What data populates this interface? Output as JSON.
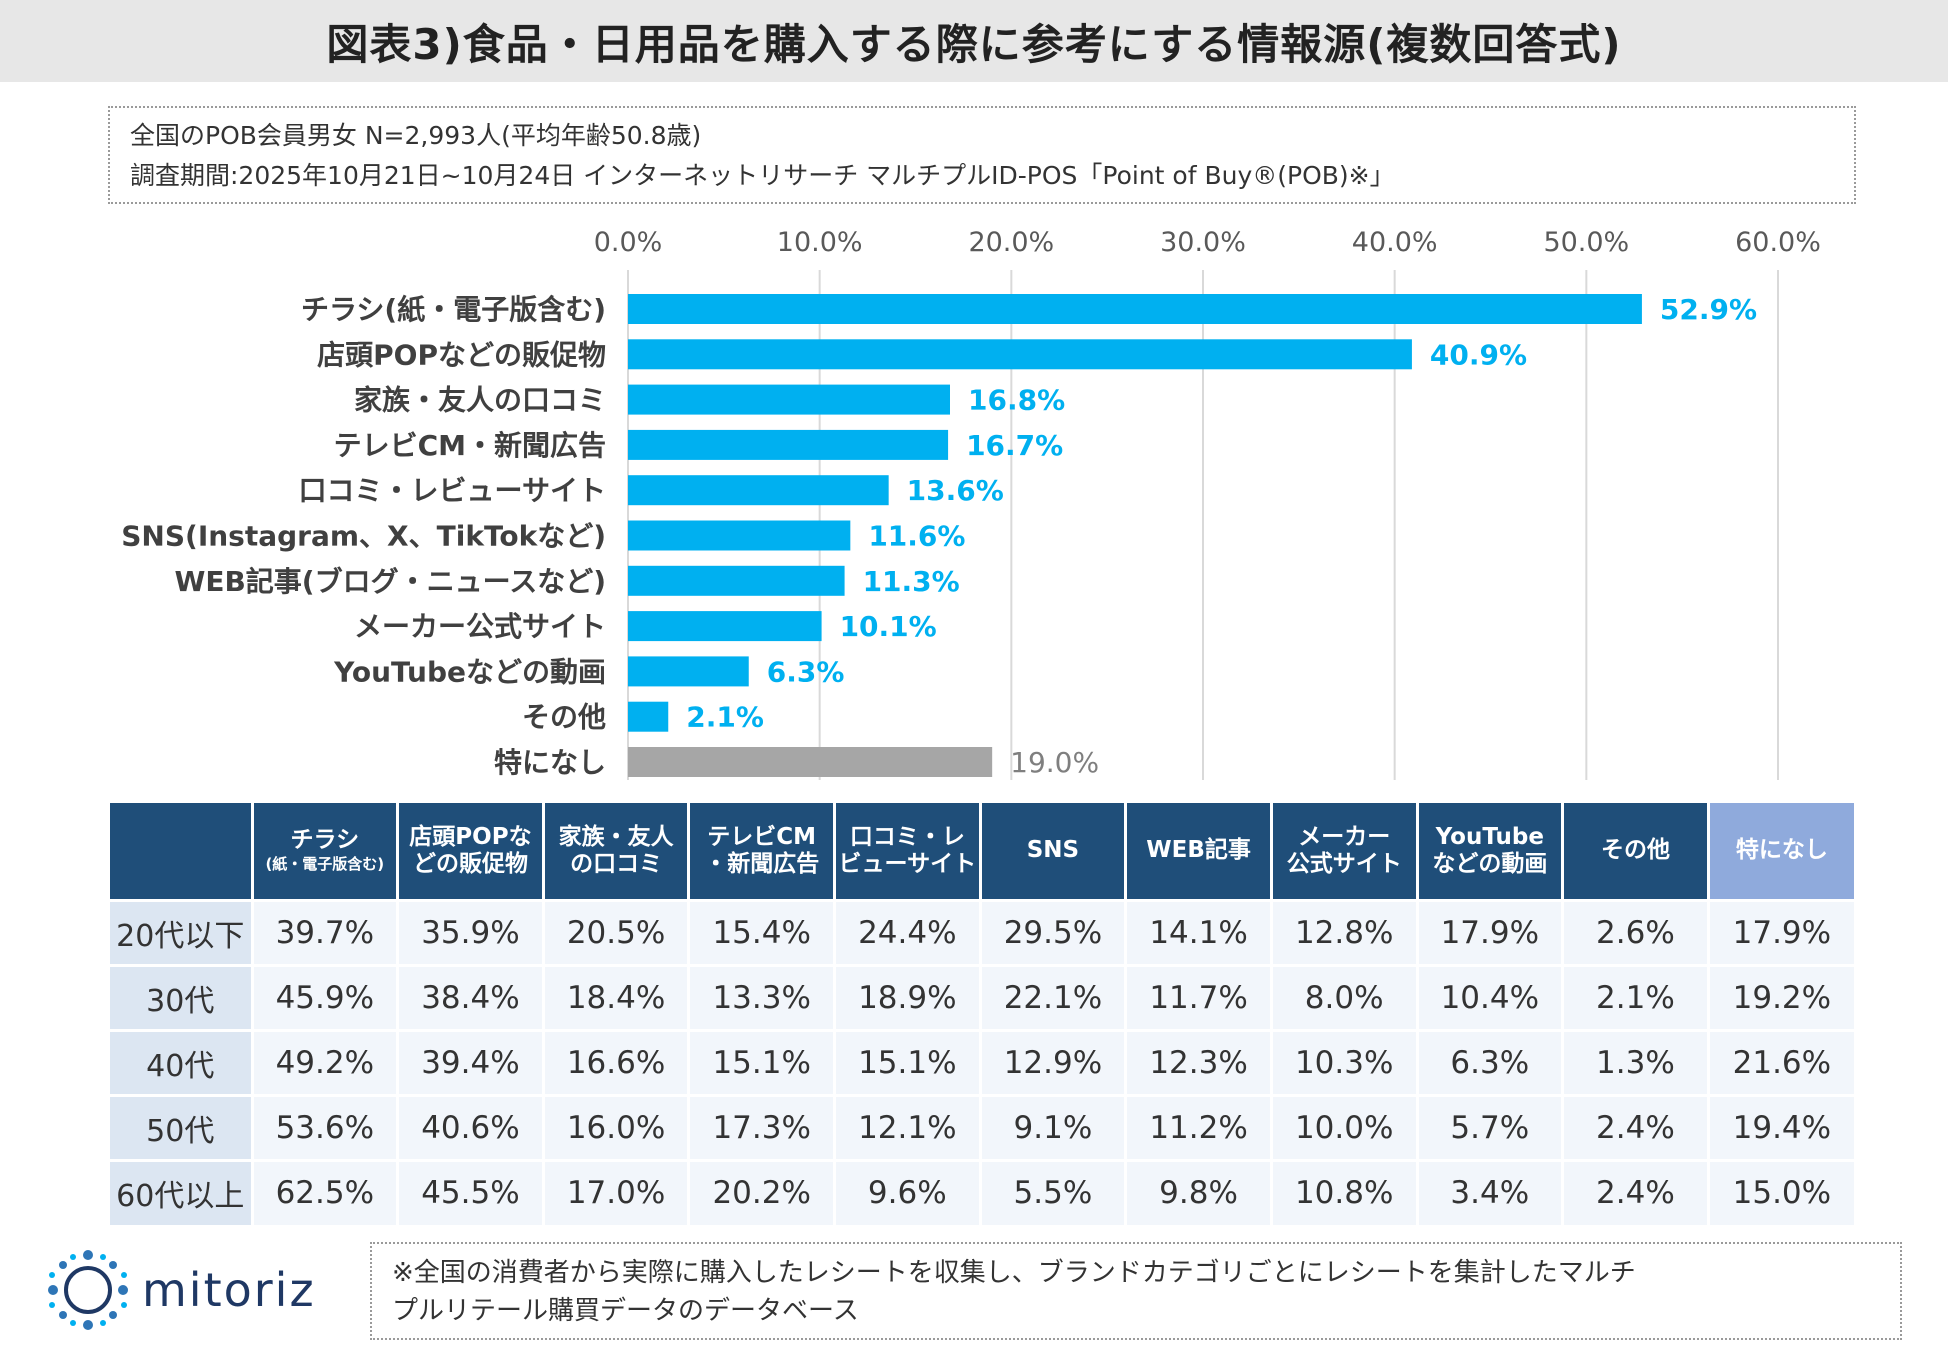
{
  "title": "図表3)食品・日用品を購入する際に参考にする情報源(複数回答式)",
  "info": {
    "line1": "全国のPOB会員男女 N=2,993人(平均年齢50.8歳)",
    "line2": "調査期間:2025年10月21日~10月24日 インターネットリサーチ マルチプルID-POS「Point of Buy®(POB)※」"
  },
  "colors": {
    "bar": "#00b0f0",
    "bar_none": "#a6a6a6",
    "label": "#00b0f0",
    "label_none": "#7f7f7f",
    "header": "#1f4e79",
    "header_none": "#8faadc"
  },
  "chart_data": {
    "type": "bar",
    "orientation": "horizontal",
    "xlim": [
      0,
      60
    ],
    "ticks": [
      "0.0%",
      "10.0%",
      "20.0%",
      "30.0%",
      "40.0%",
      "50.0%",
      "60.0%"
    ],
    "tick_values": [
      0,
      10,
      20,
      30,
      40,
      50,
      60
    ],
    "categories": [
      "チラシ(紙・電子版含む)",
      "店頭POPなどの販促物",
      "家族・友人の口コミ",
      "テレビCM・新聞広告",
      "口コミ・レビューサイト",
      "SNS(Instagram、X、TikTokなど)",
      "WEB記事(ブログ・ニュースなど)",
      "メーカー公式サイト",
      "YouTubeなどの動画",
      "その他",
      "特になし"
    ],
    "values": [
      52.9,
      40.9,
      16.8,
      16.7,
      13.6,
      11.6,
      11.3,
      10.1,
      6.3,
      2.1,
      19.0
    ],
    "value_labels": [
      "52.9%",
      "40.9%",
      "16.8%",
      "16.7%",
      "13.6%",
      "11.6%",
      "11.3%",
      "10.1%",
      "6.3%",
      "2.1%",
      "19.0%"
    ],
    "highlight_last_gray": true
  },
  "table": {
    "headers": [
      {
        "main": "チラシ",
        "sub": "(紙・電子版含む)"
      },
      {
        "main": "店頭POPな",
        "sub2": "どの販促物"
      },
      {
        "main": "家族・友人",
        "sub2": "の口コミ"
      },
      {
        "main": "テレビCM",
        "sub2": "・新聞広告"
      },
      {
        "main": "口コミ・レ",
        "sub2": "ビューサイト"
      },
      {
        "main": "SNS"
      },
      {
        "main": "WEB記事"
      },
      {
        "main": "メーカー",
        "sub2": "公式サイト"
      },
      {
        "main": "YouTube",
        "sub2": "などの動画"
      },
      {
        "main": "その他"
      },
      {
        "main": "特になし"
      }
    ],
    "rows": [
      {
        "label": "20代以下",
        "values": [
          "39.7%",
          "35.9%",
          "20.5%",
          "15.4%",
          "24.4%",
          "29.5%",
          "14.1%",
          "12.8%",
          "17.9%",
          "2.6%",
          "17.9%"
        ]
      },
      {
        "label": "30代",
        "values": [
          "45.9%",
          "38.4%",
          "18.4%",
          "13.3%",
          "18.9%",
          "22.1%",
          "11.7%",
          "8.0%",
          "10.4%",
          "2.1%",
          "19.2%"
        ]
      },
      {
        "label": "40代",
        "values": [
          "49.2%",
          "39.4%",
          "16.6%",
          "15.1%",
          "15.1%",
          "12.9%",
          "12.3%",
          "10.3%",
          "6.3%",
          "1.3%",
          "21.6%"
        ]
      },
      {
        "label": "50代",
        "values": [
          "53.6%",
          "40.6%",
          "16.0%",
          "17.3%",
          "12.1%",
          "9.1%",
          "11.2%",
          "10.0%",
          "5.7%",
          "2.4%",
          "19.4%"
        ]
      },
      {
        "label": "60代以上",
        "values": [
          "62.5%",
          "45.5%",
          "17.0%",
          "20.2%",
          "9.6%",
          "5.5%",
          "9.8%",
          "10.8%",
          "3.4%",
          "2.4%",
          "15.0%"
        ]
      }
    ]
  },
  "logo": {
    "text": "mitoriz"
  },
  "note": {
    "line1": "※全国の消費者から実際に購入したレシートを収集し、ブランドカテゴリごとにレシートを集計したマルチ",
    "line2": "プルリテール購買データのデータベース"
  }
}
